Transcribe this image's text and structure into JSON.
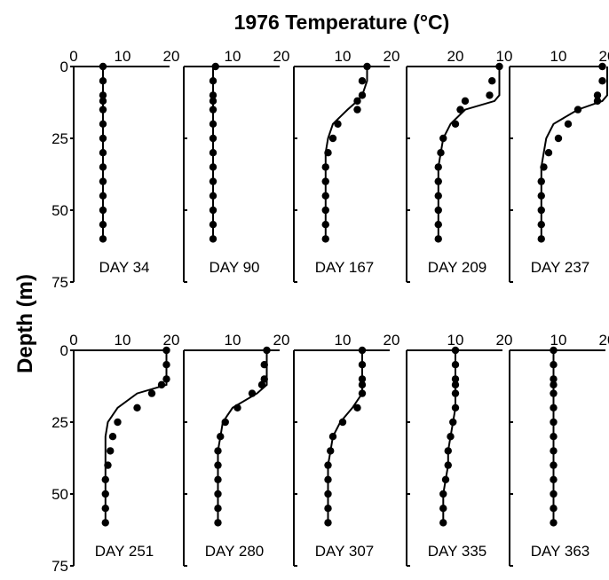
{
  "chart_data": {
    "type": "scatter",
    "title": "1976 Temperature (°C)",
    "xlabel": "",
    "ylabel": "Depth (m)",
    "y_axis_ticks": [
      "0",
      "25",
      "50",
      "75"
    ],
    "ylim": [
      75,
      0
    ],
    "depth_points_m": [
      0,
      5,
      10,
      12,
      15,
      20,
      25,
      30,
      35,
      40,
      45,
      50,
      55,
      60
    ],
    "panels": [
      {
        "label": "DAY 34",
        "x_ticks": [
          "0",
          "10",
          "20"
        ],
        "xlim": [
          0,
          20
        ],
        "observed_temp": [
          6,
          6,
          6,
          6,
          6,
          6,
          6,
          6,
          6,
          6,
          6,
          6,
          6,
          6
        ],
        "model_temp": [
          6,
          6,
          6,
          6,
          6,
          6,
          6,
          6,
          6,
          6,
          6,
          6,
          6,
          6
        ]
      },
      {
        "label": "DAY 90",
        "x_ticks": [
          "10",
          "20"
        ],
        "xlim": [
          0,
          20
        ],
        "observed_temp": [
          6.5,
          6,
          6,
          6,
          6,
          6,
          6,
          6,
          6,
          6,
          6,
          6,
          6,
          6
        ],
        "model_temp": [
          6,
          6,
          6,
          6,
          6,
          6,
          6,
          6,
          6,
          6,
          6,
          6,
          6,
          6
        ]
      },
      {
        "label": "DAY 167",
        "x_ticks": [
          "10",
          "20"
        ],
        "xlim": [
          0,
          20
        ],
        "observed_temp": [
          15,
          14,
          14,
          13,
          13,
          9,
          8,
          7,
          6.5,
          6.5,
          6.5,
          6.5,
          6.5,
          6.5
        ],
        "model_temp": [
          15,
          15,
          14,
          13,
          11,
          8,
          7,
          6.5,
          6.5,
          6.5,
          6.5,
          6.5,
          6.5,
          6.5
        ]
      },
      {
        "label": "DAY 209",
        "x_ticks": [
          "20",
          "10"
        ],
        "xlim": [
          0,
          20
        ],
        "observed_temp": [
          19,
          17.5,
          17,
          12,
          11,
          10,
          7.5,
          7,
          6.5,
          6.5,
          6.5,
          6.5,
          6.5,
          6.5
        ],
        "model_temp": [
          19,
          19,
          19,
          18,
          12,
          9,
          7.5,
          7,
          6.5,
          6.5,
          6.5,
          6.5,
          6.5,
          6.5
        ]
      },
      {
        "label": "DAY 237",
        "x_ticks": [
          "10",
          "20"
        ],
        "xlim": [
          0,
          20
        ],
        "observed_temp": [
          19,
          19,
          18,
          18,
          14,
          12,
          10,
          8,
          7,
          6.5,
          6.5,
          6.5,
          6.5,
          6.5
        ],
        "model_temp": [
          20,
          20,
          20,
          19,
          14,
          9,
          7.5,
          7,
          6.5,
          6.5,
          6.5,
          6.5,
          6.5,
          6.5
        ]
      },
      {
        "label": "DAY 251",
        "x_ticks": [
          "0",
          "10",
          "20"
        ],
        "xlim": [
          0,
          20
        ],
        "observed_temp": [
          19,
          19,
          19,
          18,
          16,
          13,
          9,
          8,
          7.5,
          7,
          6.5,
          6.5,
          6.5,
          6.5
        ],
        "model_temp": [
          19,
          19,
          19,
          19,
          13,
          9,
          7,
          6.5,
          6.5,
          6.5,
          6.5,
          6.5,
          6.5,
          6.5
        ]
      },
      {
        "label": "DAY 280",
        "x_ticks": [
          "10",
          "20"
        ],
        "xlim": [
          0,
          20
        ],
        "observed_temp": [
          17,
          16.5,
          16.5,
          16,
          14,
          11,
          8.5,
          7.5,
          7,
          7,
          7,
          7,
          7,
          7
        ],
        "model_temp": [
          17,
          17,
          17,
          17,
          15,
          10,
          8,
          7.5,
          7,
          7,
          7,
          7,
          7,
          7
        ]
      },
      {
        "label": "DAY 307",
        "x_ticks": [
          "10",
          "20"
        ],
        "xlim": [
          0,
          20
        ],
        "observed_temp": [
          14,
          14,
          14,
          14,
          14,
          13,
          10,
          8,
          7.5,
          7,
          7,
          7,
          7,
          7
        ],
        "model_temp": [
          14,
          14,
          14,
          14,
          14,
          12,
          9.5,
          8,
          7.5,
          7,
          7,
          7,
          7,
          7
        ]
      },
      {
        "label": "DAY 335",
        "x_ticks": [
          "10",
          "20"
        ],
        "xlim": [
          0,
          20
        ],
        "observed_temp": [
          10,
          10,
          10,
          10,
          10,
          10,
          9.5,
          9,
          8.5,
          8.5,
          8,
          7.5,
          7.5,
          7.5
        ],
        "model_temp": [
          10,
          10,
          10,
          10,
          10,
          10,
          9.5,
          9,
          8.5,
          8.5,
          8,
          7.5,
          7.5,
          7.5
        ]
      },
      {
        "label": "DAY 363",
        "x_ticks": [
          "10",
          "20"
        ],
        "xlim": [
          0,
          20
        ],
        "observed_temp": [
          9,
          9,
          9,
          9,
          9,
          9,
          9,
          9,
          9,
          9,
          9,
          9,
          9,
          9
        ],
        "model_temp": [
          9,
          9,
          9,
          9,
          9,
          9,
          9,
          9,
          9,
          9,
          9,
          9,
          9,
          9
        ]
      }
    ]
  }
}
